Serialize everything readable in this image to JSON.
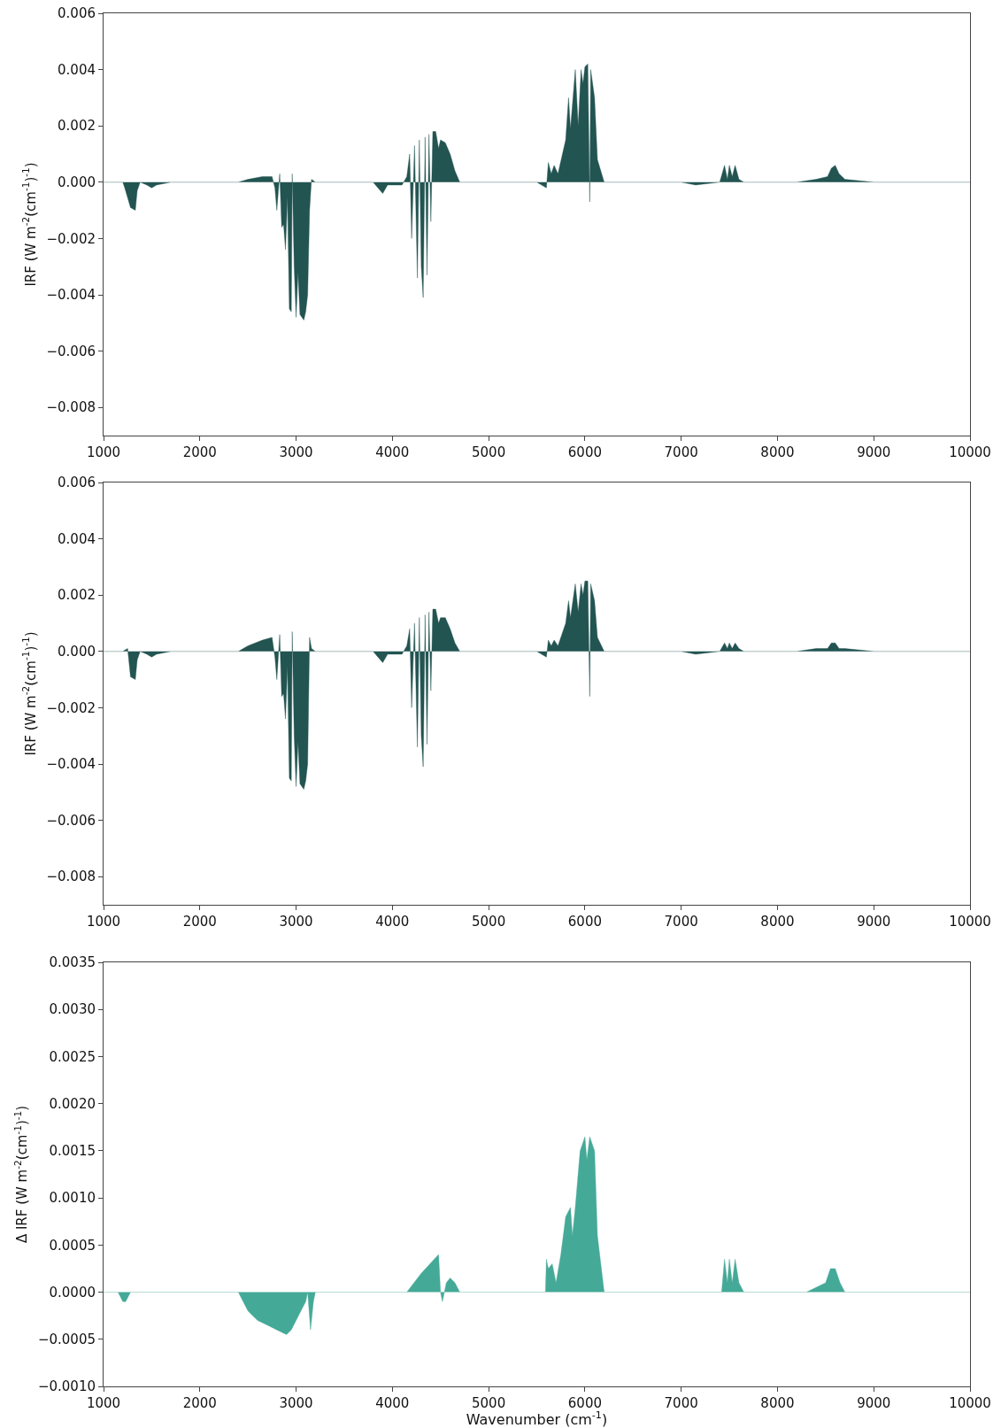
{
  "chart_data": [
    {
      "type": "area",
      "ylabel": "IRF (W m$^{-2}$(cm$^{-1}$)$^{-1}$)",
      "xlim": [
        1000,
        10000
      ],
      "xticks": [
        1000,
        2000,
        3000,
        4000,
        5000,
        6000,
        7000,
        8000,
        9000,
        10000
      ],
      "ylim": [
        -0.009,
        0.006
      ],
      "yticks": [
        {
          "value": -0.008,
          "label": "−0.008"
        },
        {
          "value": -0.006,
          "label": "−0.006"
        },
        {
          "value": -0.004,
          "label": "−0.004"
        },
        {
          "value": -0.002,
          "label": "−0.002"
        },
        {
          "value": 0,
          "label": "0.000"
        },
        {
          "value": 0.002,
          "label": "0.002"
        },
        {
          "value": 0.004,
          "label": "0.004"
        },
        {
          "value": 0.006,
          "label": "0.006"
        }
      ],
      "grid": false,
      "series": [
        {
          "color": "#225451",
          "x": [
            1000,
            1200,
            1220,
            1280,
            1330,
            1350,
            1380,
            1450,
            1500,
            1550,
            1700,
            2400,
            2500,
            2650,
            2750,
            2780,
            2800,
            2830,
            2850,
            2870,
            2890,
            2910,
            2930,
            2950,
            2960,
            2980,
            3000,
            3020,
            3040,
            3060,
            3080,
            3100,
            3120,
            3140,
            3160,
            3200,
            3800,
            3850,
            3900,
            3950,
            4100,
            4150,
            4180,
            4200,
            4230,
            4260,
            4280,
            4300,
            4320,
            4340,
            4360,
            4380,
            4400,
            4420,
            4450,
            4480,
            4500,
            4550,
            4600,
            4650,
            4700,
            5500,
            5600,
            5620,
            5650,
            5680,
            5720,
            5800,
            5830,
            5850,
            5900,
            5930,
            5960,
            5980,
            6000,
            6030,
            6050,
            6060,
            6100,
            6130,
            6200,
            7000,
            7150,
            7400,
            7450,
            7480,
            7500,
            7530,
            7560,
            7600,
            7650,
            8200,
            8400,
            8520,
            8560,
            8600,
            8640,
            8700,
            9000,
            10000
          ],
          "values": [
            0,
            0,
            -0.0002,
            -0.0009,
            -0.001,
            -0.0003,
            0,
            -0.0001,
            -0.0002,
            -0.0001,
            0,
            0,
            0.0001,
            0.0002,
            0.0002,
            -0.0002,
            -0.001,
            0.0003,
            -0.0016,
            -0.0015,
            -0.0024,
            -0.0005,
            -0.0045,
            -0.0046,
            0.0003,
            -0.003,
            -0.0048,
            -0.0032,
            -0.0047,
            -0.0048,
            -0.0049,
            -0.0046,
            -0.004,
            -0.001,
            0.0001,
            0,
            0,
            -0.0002,
            -0.0004,
            -0.0001,
            -0.0001,
            0.0002,
            0.001,
            -0.002,
            0.0013,
            -0.0034,
            0.0015,
            -0.003,
            -0.0041,
            0.0016,
            -0.0033,
            0.0017,
            -0.0014,
            0.0018,
            0.0018,
            0.0012,
            0.0015,
            0.0014,
            0.001,
            0.0004,
            0,
            0,
            -0.0002,
            0.0007,
            0.0003,
            0.0006,
            0.0003,
            0.0015,
            0.003,
            0.0019,
            0.004,
            0.002,
            0.004,
            0.0035,
            0.0041,
            0.0042,
            -0.0007,
            0.004,
            0.003,
            0.0008,
            0,
            0,
            -0.0001,
            0,
            0.0006,
            0.0001,
            0.0006,
            0.0002,
            0.0006,
            0.0001,
            0,
            0,
            0.0001,
            0.0002,
            0.0005,
            0.0006,
            0.0003,
            0.0001,
            0,
            0
          ]
        }
      ]
    },
    {
      "type": "area",
      "ylabel": "IRF (W m$^{-2}$(cm$^{-1}$)$^{-1}$)",
      "xlim": [
        1000,
        10000
      ],
      "xticks": [
        1000,
        2000,
        3000,
        4000,
        5000,
        6000,
        7000,
        8000,
        9000,
        10000
      ],
      "ylim": [
        -0.009,
        0.006
      ],
      "yticks": [
        {
          "value": -0.008,
          "label": "−0.008"
        },
        {
          "value": -0.006,
          "label": "−0.006"
        },
        {
          "value": -0.004,
          "label": "−0.004"
        },
        {
          "value": -0.002,
          "label": "−0.002"
        },
        {
          "value": 0,
          "label": "0.000"
        },
        {
          "value": 0.002,
          "label": "0.002"
        },
        {
          "value": 0.004,
          "label": "0.004"
        },
        {
          "value": 0.006,
          "label": "0.006"
        }
      ],
      "grid": false,
      "series": [
        {
          "color": "#225451",
          "x": [
            1000,
            1200,
            1250,
            1280,
            1330,
            1350,
            1380,
            1450,
            1500,
            1550,
            1700,
            2400,
            2500,
            2650,
            2750,
            2780,
            2800,
            2830,
            2850,
            2870,
            2890,
            2910,
            2930,
            2950,
            2960,
            2980,
            3000,
            3020,
            3040,
            3060,
            3080,
            3100,
            3120,
            3140,
            3160,
            3200,
            3800,
            3850,
            3900,
            3950,
            4100,
            4150,
            4180,
            4200,
            4230,
            4260,
            4280,
            4300,
            4320,
            4340,
            4360,
            4380,
            4400,
            4420,
            4450,
            4480,
            4500,
            4550,
            4600,
            4650,
            4700,
            5500,
            5600,
            5620,
            5650,
            5680,
            5720,
            5800,
            5830,
            5850,
            5900,
            5930,
            5960,
            5980,
            6000,
            6030,
            6050,
            6060,
            6100,
            6130,
            6200,
            7000,
            7150,
            7400,
            7450,
            7480,
            7500,
            7530,
            7560,
            7600,
            7650,
            8200,
            8400,
            8520,
            8560,
            8600,
            8640,
            8700,
            9000,
            10000
          ],
          "values": [
            0,
            0,
            0.0001,
            -0.0009,
            -0.001,
            -0.0003,
            0,
            -0.0001,
            -0.0002,
            -0.0001,
            0,
            0,
            0.0002,
            0.0004,
            0.0005,
            -0.0002,
            -0.001,
            0.0006,
            -0.0016,
            -0.0015,
            -0.0024,
            -0.0005,
            -0.0045,
            -0.0046,
            0.0007,
            -0.003,
            -0.0048,
            -0.0032,
            -0.0047,
            -0.0048,
            -0.0049,
            -0.0046,
            -0.004,
            0.0005,
            0.0001,
            0,
            0,
            -0.0002,
            -0.0004,
            -0.0001,
            -0.0001,
            0.0002,
            0.0008,
            -0.002,
            0.001,
            -0.0034,
            0.0012,
            -0.003,
            -0.0041,
            0.0013,
            -0.0033,
            0.0014,
            -0.0014,
            0.0015,
            0.0015,
            0.001,
            0.0012,
            0.0012,
            0.0008,
            0.0003,
            0,
            0,
            -0.0002,
            0.0004,
            0.0002,
            0.0004,
            0.0002,
            0.001,
            0.0018,
            0.0012,
            0.0024,
            0.0014,
            0.0024,
            0.002,
            0.0025,
            0.0025,
            -0.0016,
            0.0024,
            0.0018,
            0.0005,
            0,
            0,
            -0.0001,
            0,
            0.0003,
            0.0001,
            0.0003,
            0.0001,
            0.0003,
            0.0001,
            0,
            0,
            0.0001,
            0.0001,
            0.0003,
            0.0003,
            0.0001,
            0.0001,
            0,
            0
          ]
        }
      ]
    },
    {
      "type": "area",
      "xlabel": "Wavenumber (cm$^{-1}$)",
      "ylabel": "Δ IRF (W m$^{-2}$(cm$^{-1}$)$^{-1}$)",
      "xlim": [
        1000,
        10000
      ],
      "xticks": [
        1000,
        2000,
        3000,
        4000,
        5000,
        6000,
        7000,
        8000,
        9000,
        10000
      ],
      "ylim": [
        -0.001,
        0.0035
      ],
      "yticks": [
        {
          "value": -0.001,
          "label": "−0.0010"
        },
        {
          "value": -0.0005,
          "label": "−0.0005"
        },
        {
          "value": 0,
          "label": "0.0000"
        },
        {
          "value": 0.0005,
          "label": "0.0005"
        },
        {
          "value": 0.001,
          "label": "0.0010"
        },
        {
          "value": 0.0015,
          "label": "0.0015"
        },
        {
          "value": 0.002,
          "label": "0.0020"
        },
        {
          "value": 0.0025,
          "label": "0.0025"
        },
        {
          "value": 0.003,
          "label": "0.0030"
        },
        {
          "value": 0.0035,
          "label": "0.0035"
        }
      ],
      "grid": false,
      "series": [
        {
          "color": "#45a997",
          "x": [
            1000,
            1150,
            1200,
            1230,
            1280,
            1300,
            2400,
            2450,
            2500,
            2550,
            2600,
            2700,
            2800,
            2900,
            2950,
            3000,
            3050,
            3100,
            3120,
            3150,
            3180,
            3200,
            4150,
            4300,
            4480,
            4500,
            4520,
            4560,
            4600,
            4650,
            4700,
            5550,
            5590,
            5600,
            5620,
            5660,
            5700,
            5750,
            5800,
            5850,
            5870,
            5900,
            5950,
            6000,
            6020,
            6050,
            6100,
            6130,
            6200,
            7000,
            7420,
            7450,
            7480,
            7500,
            7530,
            7560,
            7600,
            7650,
            8300,
            8500,
            8550,
            8600,
            8650,
            8700,
            9200,
            10000
          ],
          "values": [
            0,
            0,
            -0.0001,
            -0.0001,
            0,
            0,
            0,
            -0.0001,
            -0.0002,
            -0.00025,
            -0.0003,
            -0.00035,
            -0.0004,
            -0.00045,
            -0.0004,
            -0.0003,
            -0.0002,
            -0.0001,
            0,
            -0.0004,
            -0.0001,
            0,
            0,
            0.0002,
            0.0004,
            0,
            -0.0001,
            0.0001,
            0.00015,
            0.0001,
            0,
            0,
            0,
            0.00035,
            0.00025,
            0.0003,
            0.0001,
            0.0004,
            0.0008,
            0.0009,
            0.0006,
            0.0009,
            0.0015,
            0.00165,
            0.0014,
            0.00165,
            0.0015,
            0.0006,
            0,
            0,
            0,
            0.00035,
            0.0001,
            0.00035,
            0.0001,
            0.00035,
            0.0001,
            0,
            0,
            0.0001,
            0.00025,
            0.00025,
            0.0001,
            0,
            0,
            0
          ]
        }
      ]
    }
  ]
}
